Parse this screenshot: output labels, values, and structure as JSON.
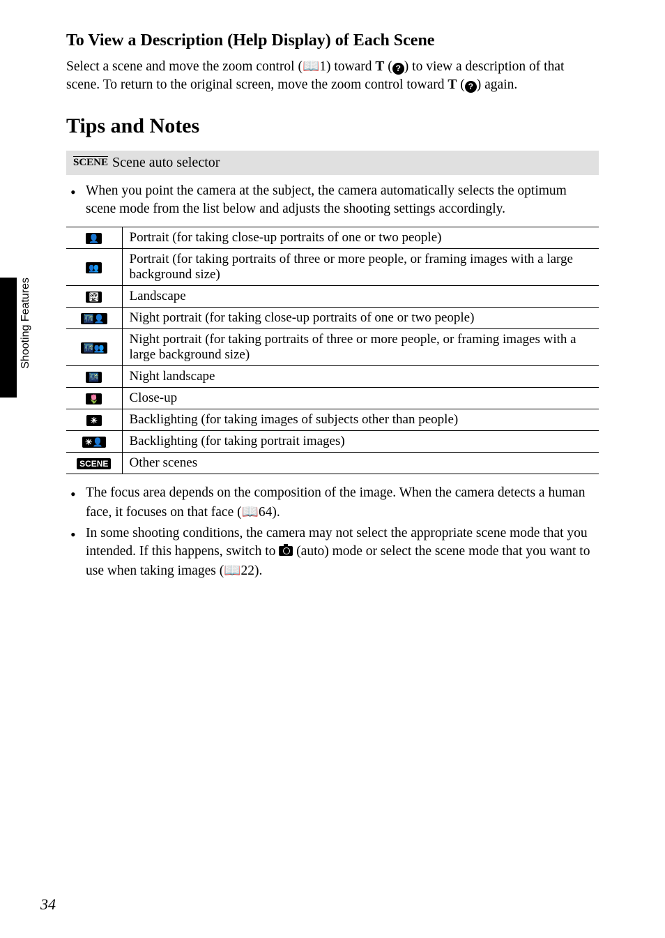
{
  "sideTab": {
    "label": "Shooting Features"
  },
  "pageNumber": "34",
  "section1": {
    "heading": "To View a Description (Help Display) of Each Scene",
    "body_pre": "Select a scene and move the zoom control (",
    "body_ref1": "1) toward ",
    "body_T1": "T",
    "body_paren1": " (",
    "body_mid": ") to view a description of that scene. To return to the original screen, move the zoom control toward ",
    "body_T2": "T",
    "body_paren2": " (",
    "body_end": ") again."
  },
  "mainHeading": "Tips and Notes",
  "modeBar": {
    "iconText": "SCENE",
    "label": "Scene auto selector"
  },
  "bullet1": "When you point the camera at the subject, the camera automatically selects the optimum scene mode from the list below and adjusts the shooting settings accordingly.",
  "table": {
    "rows": [
      {
        "icon": "👤",
        "desc": "Portrait (for taking close-up portraits of one or two people)"
      },
      {
        "icon": "👥",
        "desc": "Portrait (for taking portraits of three or more people, or framing images with a large background size)"
      },
      {
        "icon": "🏞",
        "desc": "Landscape"
      },
      {
        "icon": "🌃👤",
        "desc": "Night portrait (for taking close-up portraits of one or two people)"
      },
      {
        "icon": "🌃👥",
        "desc": "Night portrait (for taking portraits of three or more people, or framing images with a large background size)"
      },
      {
        "icon": "🌃",
        "desc": "Night landscape"
      },
      {
        "icon": "🌷",
        "desc": "Close-up"
      },
      {
        "icon": "☀",
        "desc": "Backlighting (for taking images of subjects other than people)"
      },
      {
        "icon": "☀👤",
        "desc": "Backlighting (for taking portrait images)"
      },
      {
        "icon": "SCENE",
        "desc": "Other scenes"
      }
    ]
  },
  "bullet2_pre": "The focus area depends on the composition of the image. When the camera detects a human face, it focuses on that face (",
  "bullet2_ref": "64).",
  "bullet3_pre": "In some shooting conditions, the camera may not select the appropriate scene mode that you intended. If this happens, switch to ",
  "bullet3_mid": " (auto) mode or select the scene mode that you want to use when taking images (",
  "bullet3_ref": "22)."
}
